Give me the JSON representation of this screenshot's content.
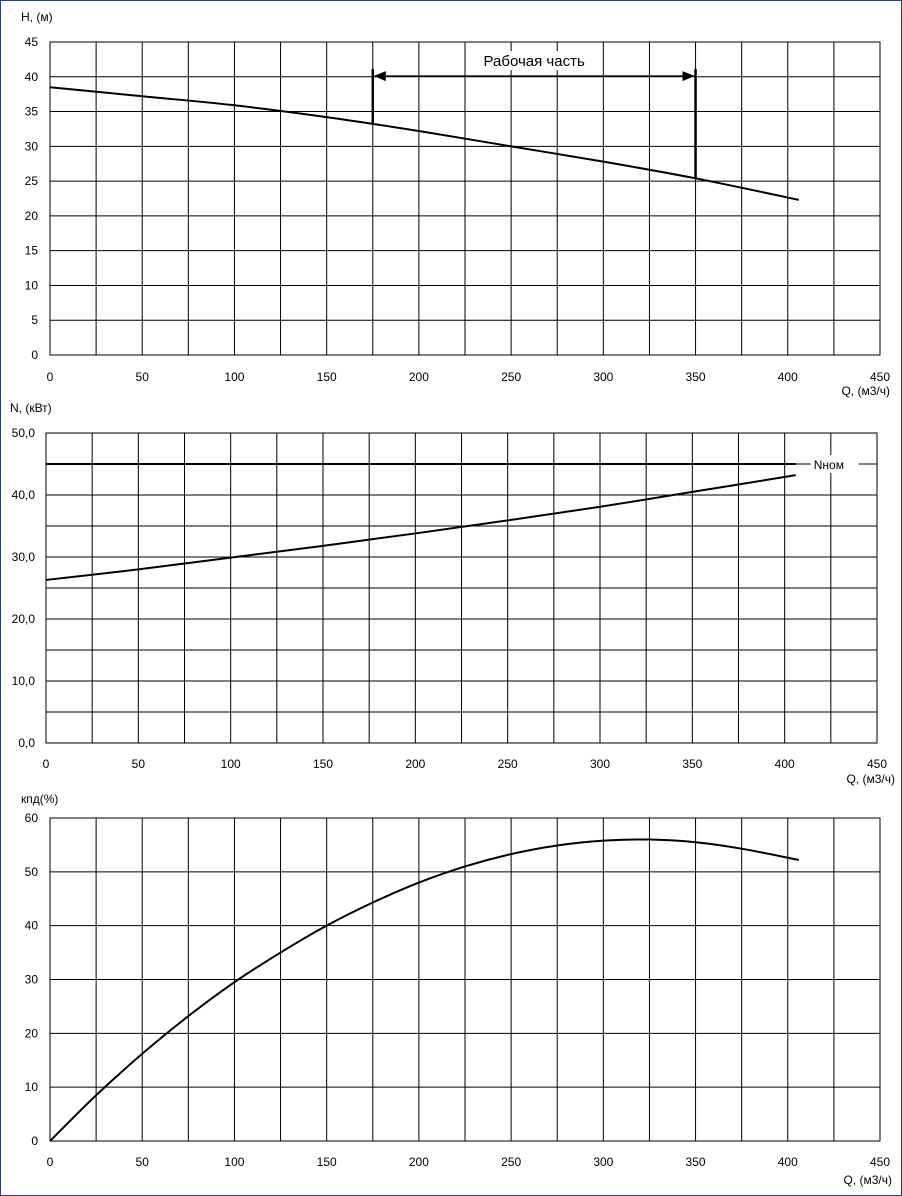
{
  "chart_data": [
    {
      "type": "line",
      "ylabel": "H, (м)",
      "xlabel": "Q, (м3/ч)",
      "xlim": [
        0,
        450
      ],
      "ylim": [
        0,
        45
      ],
      "x_ticks": [
        0,
        50,
        100,
        150,
        200,
        250,
        300,
        350,
        400,
        450
      ],
      "x_tick_labels": [
        "0",
        "50",
        "100",
        "150",
        "200",
        "250",
        "300",
        "350",
        "400",
        "450"
      ],
      "y_ticks": [
        0,
        5,
        10,
        15,
        20,
        25,
        30,
        35,
        40,
        45
      ],
      "y_tick_labels": [
        "0",
        "5",
        "10",
        "15",
        "20",
        "25",
        "30",
        "35",
        "40",
        "45"
      ],
      "grid": true,
      "series": [
        {
          "x": [
            0,
            50,
            100,
            150,
            200,
            250,
            300,
            350,
            406
          ],
          "y": [
            38.5,
            37.2,
            35.9,
            34.2,
            32.2,
            30.0,
            27.8,
            25.4,
            22.3
          ]
        }
      ],
      "annotation": {
        "text": "Рабочая часть",
        "x_start": 175,
        "x_end": 350,
        "y_arrow": 40.1,
        "y_start_bottom": 33.1,
        "y_end_bottom": 25.4
      }
    },
    {
      "type": "line",
      "ylabel": "N, (кВт)",
      "xlabel": "Q, (м3/ч)",
      "xlim": [
        0,
        450
      ],
      "ylim": [
        0,
        50
      ],
      "x_ticks": [
        0,
        50,
        100,
        150,
        200,
        250,
        300,
        350,
        400,
        450
      ],
      "x_tick_labels": [
        "0",
        "50",
        "100",
        "150",
        "200",
        "250",
        "300",
        "350",
        "400",
        "450"
      ],
      "y_ticks": [
        0,
        10,
        20,
        30,
        40,
        50
      ],
      "y_tick_labels": [
        "0,0",
        "10,0",
        "20,0",
        "30,0",
        "40,0",
        "50,0"
      ],
      "y_minor_step": 5,
      "grid": true,
      "series": [
        {
          "x": [
            0,
            50,
            100,
            150,
            200,
            250,
            300,
            350,
            406
          ],
          "y": [
            26.3,
            28.0,
            29.9,
            31.8,
            33.8,
            35.9,
            38.1,
            40.5,
            43.2
          ]
        },
        {
          "name": "Nном",
          "x": [
            0,
            406
          ],
          "y": [
            45.0,
            45.0
          ]
        }
      ]
    },
    {
      "type": "line",
      "ylabel": "кпд(%)",
      "xlabel": "Q, (м3/ч)",
      "xlim": [
        0,
        450
      ],
      "ylim": [
        0,
        60
      ],
      "x_ticks": [
        0,
        50,
        100,
        150,
        200,
        250,
        300,
        350,
        400,
        450
      ],
      "x_tick_labels": [
        "0",
        "50",
        "100",
        "150",
        "200",
        "250",
        "300",
        "350",
        "400",
        "450"
      ],
      "y_ticks": [
        0,
        10,
        20,
        30,
        40,
        50,
        60
      ],
      "y_tick_labels": [
        "0",
        "10",
        "20",
        "30",
        "40",
        "50",
        "60"
      ],
      "grid": true,
      "series": [
        {
          "x": [
            0,
            25,
            50,
            75,
            100,
            125,
            150,
            175,
            200,
            225,
            250,
            275,
            300,
            325,
            350,
            375,
            406
          ],
          "y": [
            0,
            8.5,
            16.2,
            23.2,
            29.5,
            35.0,
            40.0,
            44.3,
            48.0,
            51.0,
            53.3,
            54.9,
            55.8,
            56.0,
            55.5,
            54.3,
            52.2
          ]
        }
      ]
    }
  ]
}
